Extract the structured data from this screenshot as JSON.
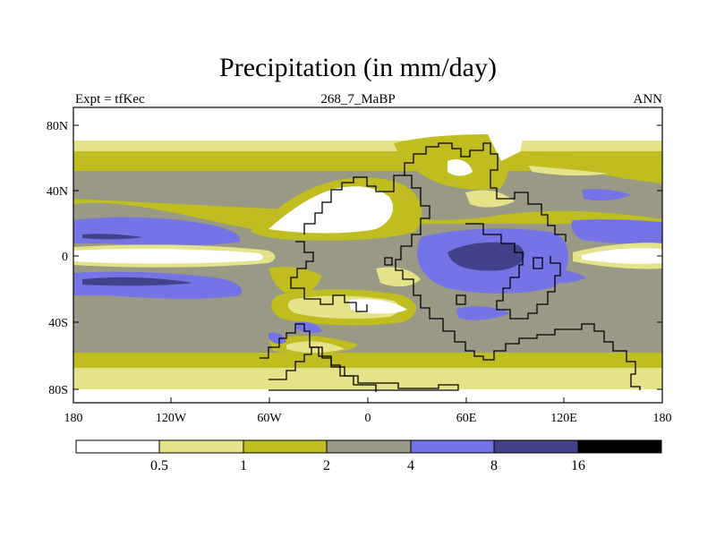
{
  "title": "Precipitation (in mm/day)",
  "left_label": "Expt = tfKec",
  "center_label": "268_7_MaBP",
  "right_label": "ANN",
  "latitude_ticks": [
    "80N",
    "40N",
    "0",
    "40S",
    "80S"
  ],
  "longitude_ticks": [
    "180",
    "120W",
    "60W",
    "0",
    "60E",
    "120E",
    "180"
  ],
  "colorbar": {
    "levels": [
      "0.5",
      "1",
      "2",
      "4",
      "8",
      "16"
    ],
    "colors": [
      "#ffffff",
      "#e4e38a",
      "#bfbd1f",
      "#999985",
      "#7474e6",
      "#42428a",
      "#000000"
    ]
  }
}
